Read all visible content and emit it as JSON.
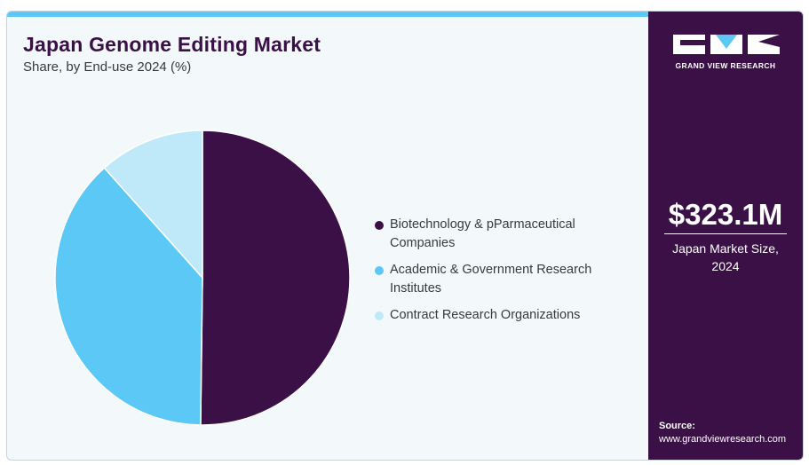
{
  "header": {
    "title": "Japan Genome Editing Market",
    "subtitle": "Share, by End-use 2024 (%)"
  },
  "brand": {
    "logo_text": "GRAND VIEW RESEARCH",
    "dark": "#3a1046",
    "light_blue": "#5bc8f5",
    "pale_blue": "#bfe9f9"
  },
  "sidebar": {
    "market_value": "$323.1M",
    "market_label": "Japan Market Size, 2024",
    "source_label": "Source:",
    "source_url": "www.grandviewresearch.com"
  },
  "chart_data": {
    "type": "pie",
    "title": "Japan Genome Editing Market",
    "subtitle": "Share, by End-use 2024 (%)",
    "legend_position": "right",
    "slices": [
      {
        "label": "Biotechnology & pParmaceutical Companies",
        "value": 50.2,
        "color": "#3a1046"
      },
      {
        "label": "Academic & Government Research Institutes",
        "value": 38.2,
        "color": "#5bc8f5"
      },
      {
        "label": "Contract Research Organizations",
        "value": 11.6,
        "color": "#bfe9f9"
      }
    ]
  }
}
